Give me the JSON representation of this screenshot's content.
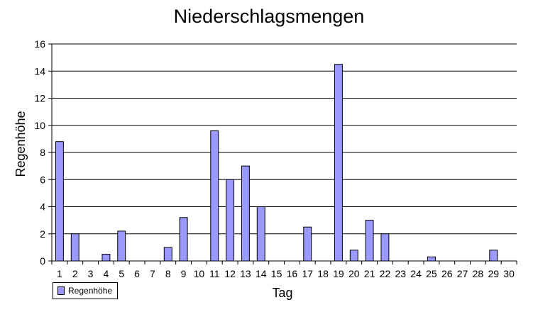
{
  "chart_data": {
    "type": "bar",
    "title": "Niederschlagsmengen",
    "xlabel": "Tag",
    "ylabel": "Regenhöhe",
    "ylim": [
      0,
      16
    ],
    "yticks": [
      0,
      2,
      4,
      6,
      8,
      10,
      12,
      14,
      16
    ],
    "grid": true,
    "legend_position": "bottom-left",
    "categories": [
      "1",
      "2",
      "3",
      "4",
      "5",
      "6",
      "7",
      "8",
      "9",
      "10",
      "11",
      "12",
      "13",
      "14",
      "15",
      "16",
      "17",
      "18",
      "19",
      "20",
      "21",
      "22",
      "23",
      "24",
      "25",
      "26",
      "27",
      "28",
      "29",
      "30"
    ],
    "series": [
      {
        "name": "Regenhöhe",
        "color": "#9999ff",
        "values": [
          8.8,
          2,
          0,
          0.5,
          2.2,
          0,
          0,
          1,
          3.2,
          0,
          9.6,
          6,
          7,
          4,
          0,
          0,
          2.5,
          0,
          14.5,
          0.8,
          3,
          2,
          0,
          0,
          0.3,
          0,
          0,
          0,
          0.8,
          0
        ]
      }
    ]
  }
}
